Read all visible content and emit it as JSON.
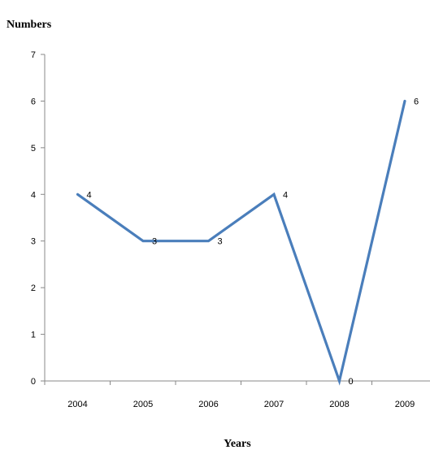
{
  "chart_data": {
    "type": "line",
    "title": "",
    "ylabel": "Numbers",
    "xlabel": "Years",
    "categories": [
      "2004",
      "2005",
      "2006",
      "2007",
      "2008",
      "2009"
    ],
    "series": [
      {
        "values": [
          4,
          3,
          3,
          4,
          0,
          6
        ],
        "color": "#4a7ebb"
      }
    ],
    "data_labels": [
      "4",
      "3",
      "3",
      "4",
      "0",
      "6"
    ],
    "ylim": [
      0,
      7
    ],
    "yticks": [
      "0",
      "1",
      "2",
      "3",
      "4",
      "5",
      "6",
      "7"
    ],
    "grid": false,
    "legend": "none"
  }
}
